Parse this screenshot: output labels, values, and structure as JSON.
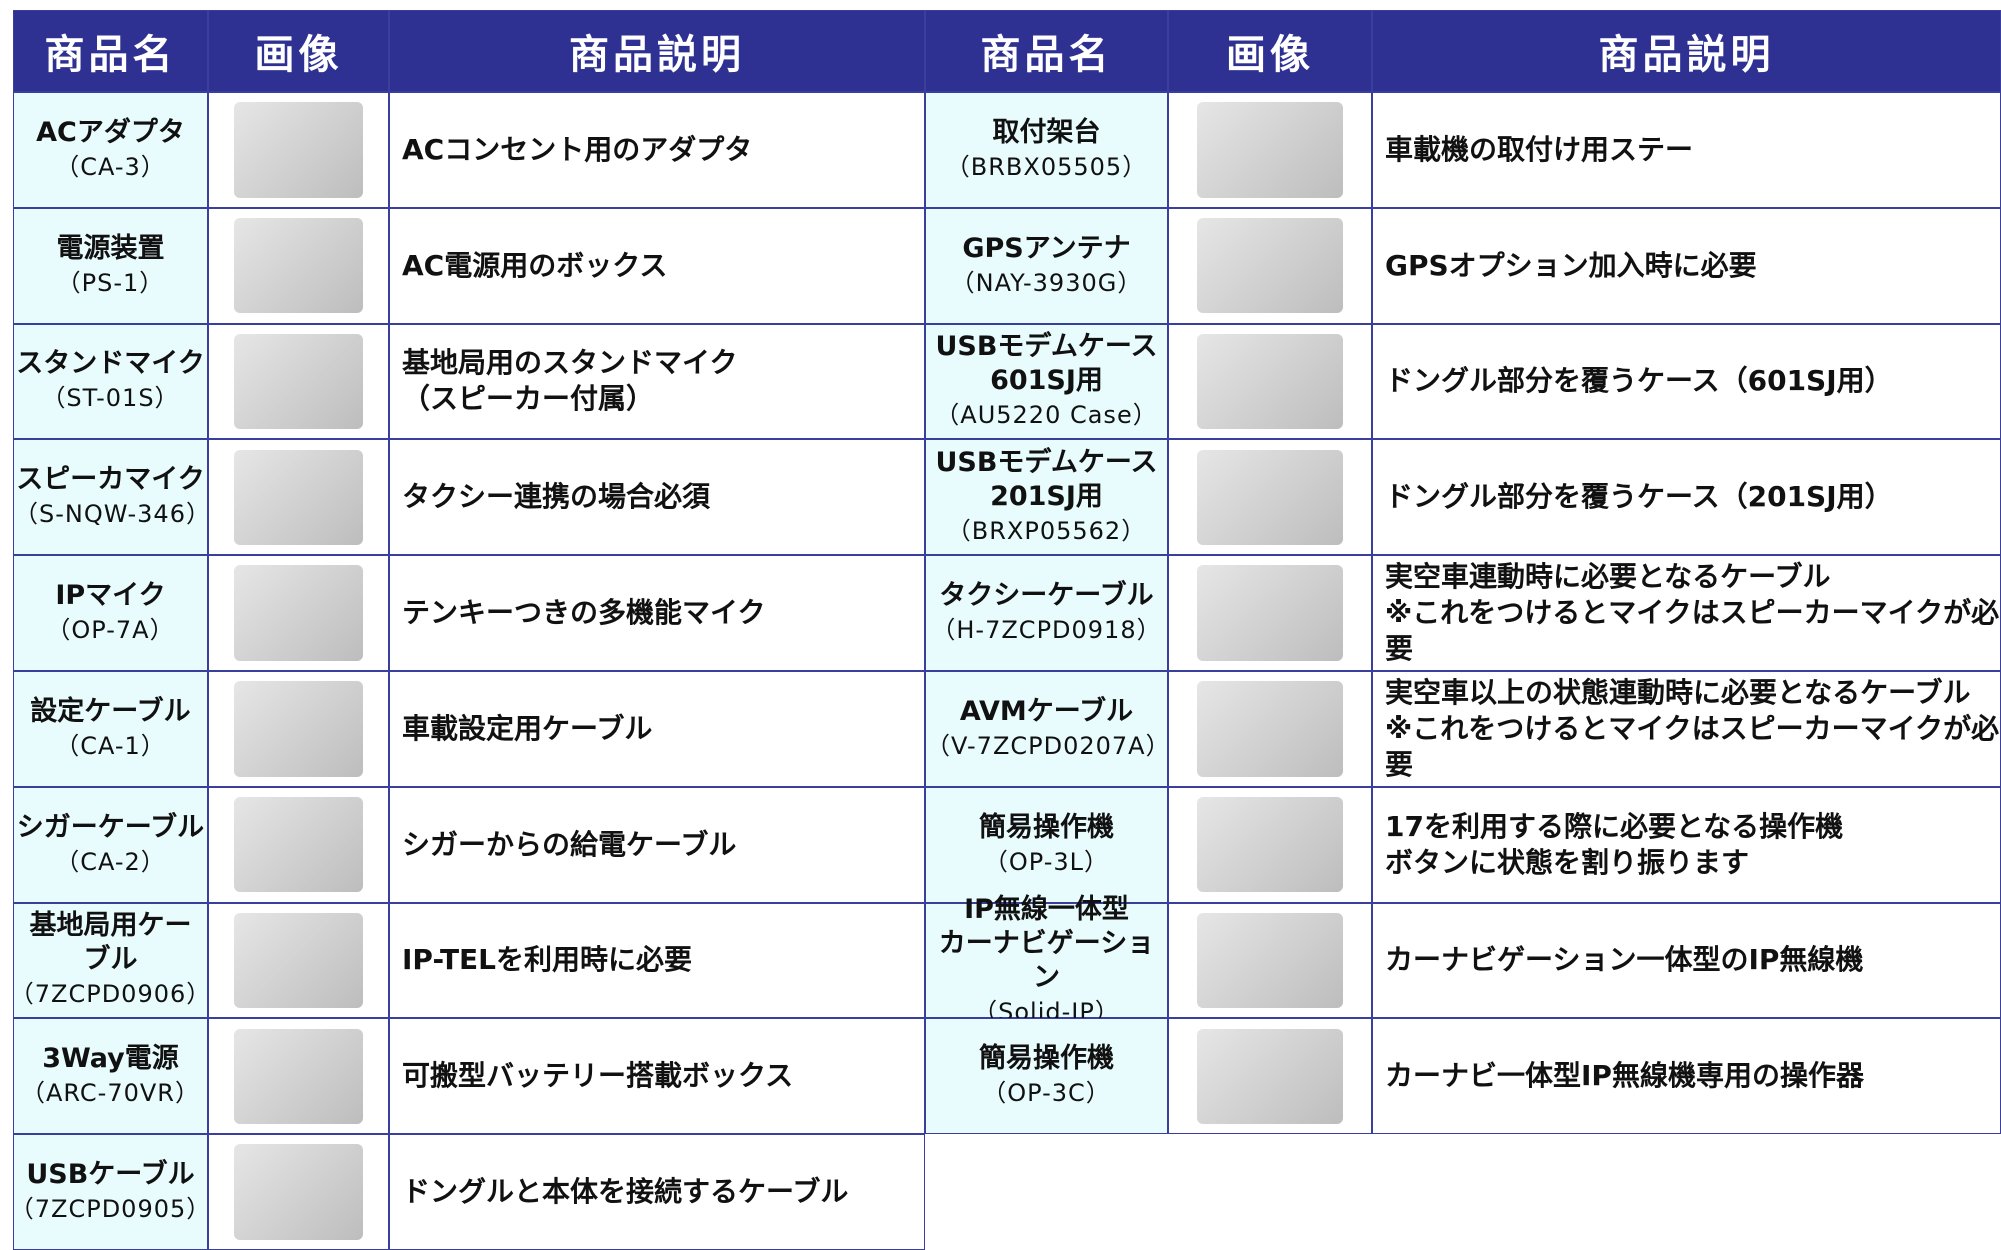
{
  "headers": {
    "left": [
      "商品名",
      "画像",
      "商品説明"
    ],
    "right": [
      "商品名",
      "画像",
      "商品説明"
    ]
  },
  "left_items": [
    {
      "name": [
        "ACアダプタ"
      ],
      "model": "（CA-3）",
      "description": [
        "ACコンセント用のアダプタ"
      ]
    },
    {
      "name": [
        "電源装置"
      ],
      "model": "（PS-1）",
      "description": [
        "AC電源用のボックス"
      ]
    },
    {
      "name": [
        "スタンドマイク"
      ],
      "model": "（ST-01S）",
      "description": [
        "基地局用のスタンドマイク",
        "（スピーカー付属）"
      ]
    },
    {
      "name": [
        "スピーカマイク"
      ],
      "model": "（S-NQW-346）",
      "description": [
        "タクシー連携の場合必須"
      ]
    },
    {
      "name": [
        "IPマイク"
      ],
      "model": "（OP-7A）",
      "description": [
        "テンキーつきの多機能マイク"
      ]
    },
    {
      "name": [
        "設定ケーブル"
      ],
      "model": "（CA-1）",
      "description": [
        "車載設定用ケーブル"
      ]
    },
    {
      "name": [
        "シガーケーブル"
      ],
      "model": "（CA-2）",
      "description": [
        "シガーからの給電ケーブル"
      ]
    },
    {
      "name": [
        "基地局用ケー",
        "ブル"
      ],
      "model": "（7ZCPD0906）",
      "description": [
        "IP-TELを利用時に必要"
      ]
    },
    {
      "name": [
        "3Way電源"
      ],
      "model": "（ARC-70VR）",
      "description": [
        "可搬型バッテリー搭載ボックス"
      ]
    },
    {
      "name": [
        "USBケーブル"
      ],
      "model": "（7ZCPD0905）",
      "description": [
        "ドングルと本体を接続するケーブル"
      ]
    }
  ],
  "right_items": [
    {
      "name": [
        "取付架台"
      ],
      "model": "（BRBX05505）",
      "description": [
        "車載機の取付け用ステー"
      ]
    },
    {
      "name": [
        "GPSアンテナ"
      ],
      "model": "（NAY-3930G）",
      "description": [
        "GPSオプション加入時に必要"
      ]
    },
    {
      "name": [
        "USBモデムケース",
        "601SJ用"
      ],
      "model": "（AU5220 Case）",
      "description": [
        "ドングル部分を覆うケース（601SJ用）"
      ]
    },
    {
      "name": [
        "USBモデムケース",
        "201SJ用"
      ],
      "model": "（BRXP05562）",
      "description": [
        "ドングル部分を覆うケース（201SJ用）"
      ]
    },
    {
      "name": [
        "タクシーケーブル"
      ],
      "model": "（H-7ZCPD0918）",
      "description": [
        "実空車連動時に必要となるケーブル",
        "※これをつけるとマイクはスピーカーマイクが必要"
      ]
    },
    {
      "name": [
        "AVMケーブル"
      ],
      "model": "（V-7ZCPD0207A）",
      "description": [
        "実空車以上の状態連動時に必要となるケーブル",
        "※これをつけるとマイクはスピーカーマイクが必要"
      ]
    },
    {
      "name": [
        "簡易操作機"
      ],
      "model": "（OP-3L）",
      "description": [
        "17を利用する際に必要となる操作機",
        "ボタンに状態を割り振ります"
      ]
    },
    {
      "name": [
        "IP無線一体型",
        "カーナビゲーション"
      ],
      "model": "（Solid-IP）",
      "description": [
        "カーナビゲーション一体型のIP無線機"
      ]
    },
    {
      "name": [
        "簡易操作機"
      ],
      "model": "（OP-3C）",
      "description": [
        "カーナビ一体型IP無線機専用の操作器"
      ]
    }
  ]
}
